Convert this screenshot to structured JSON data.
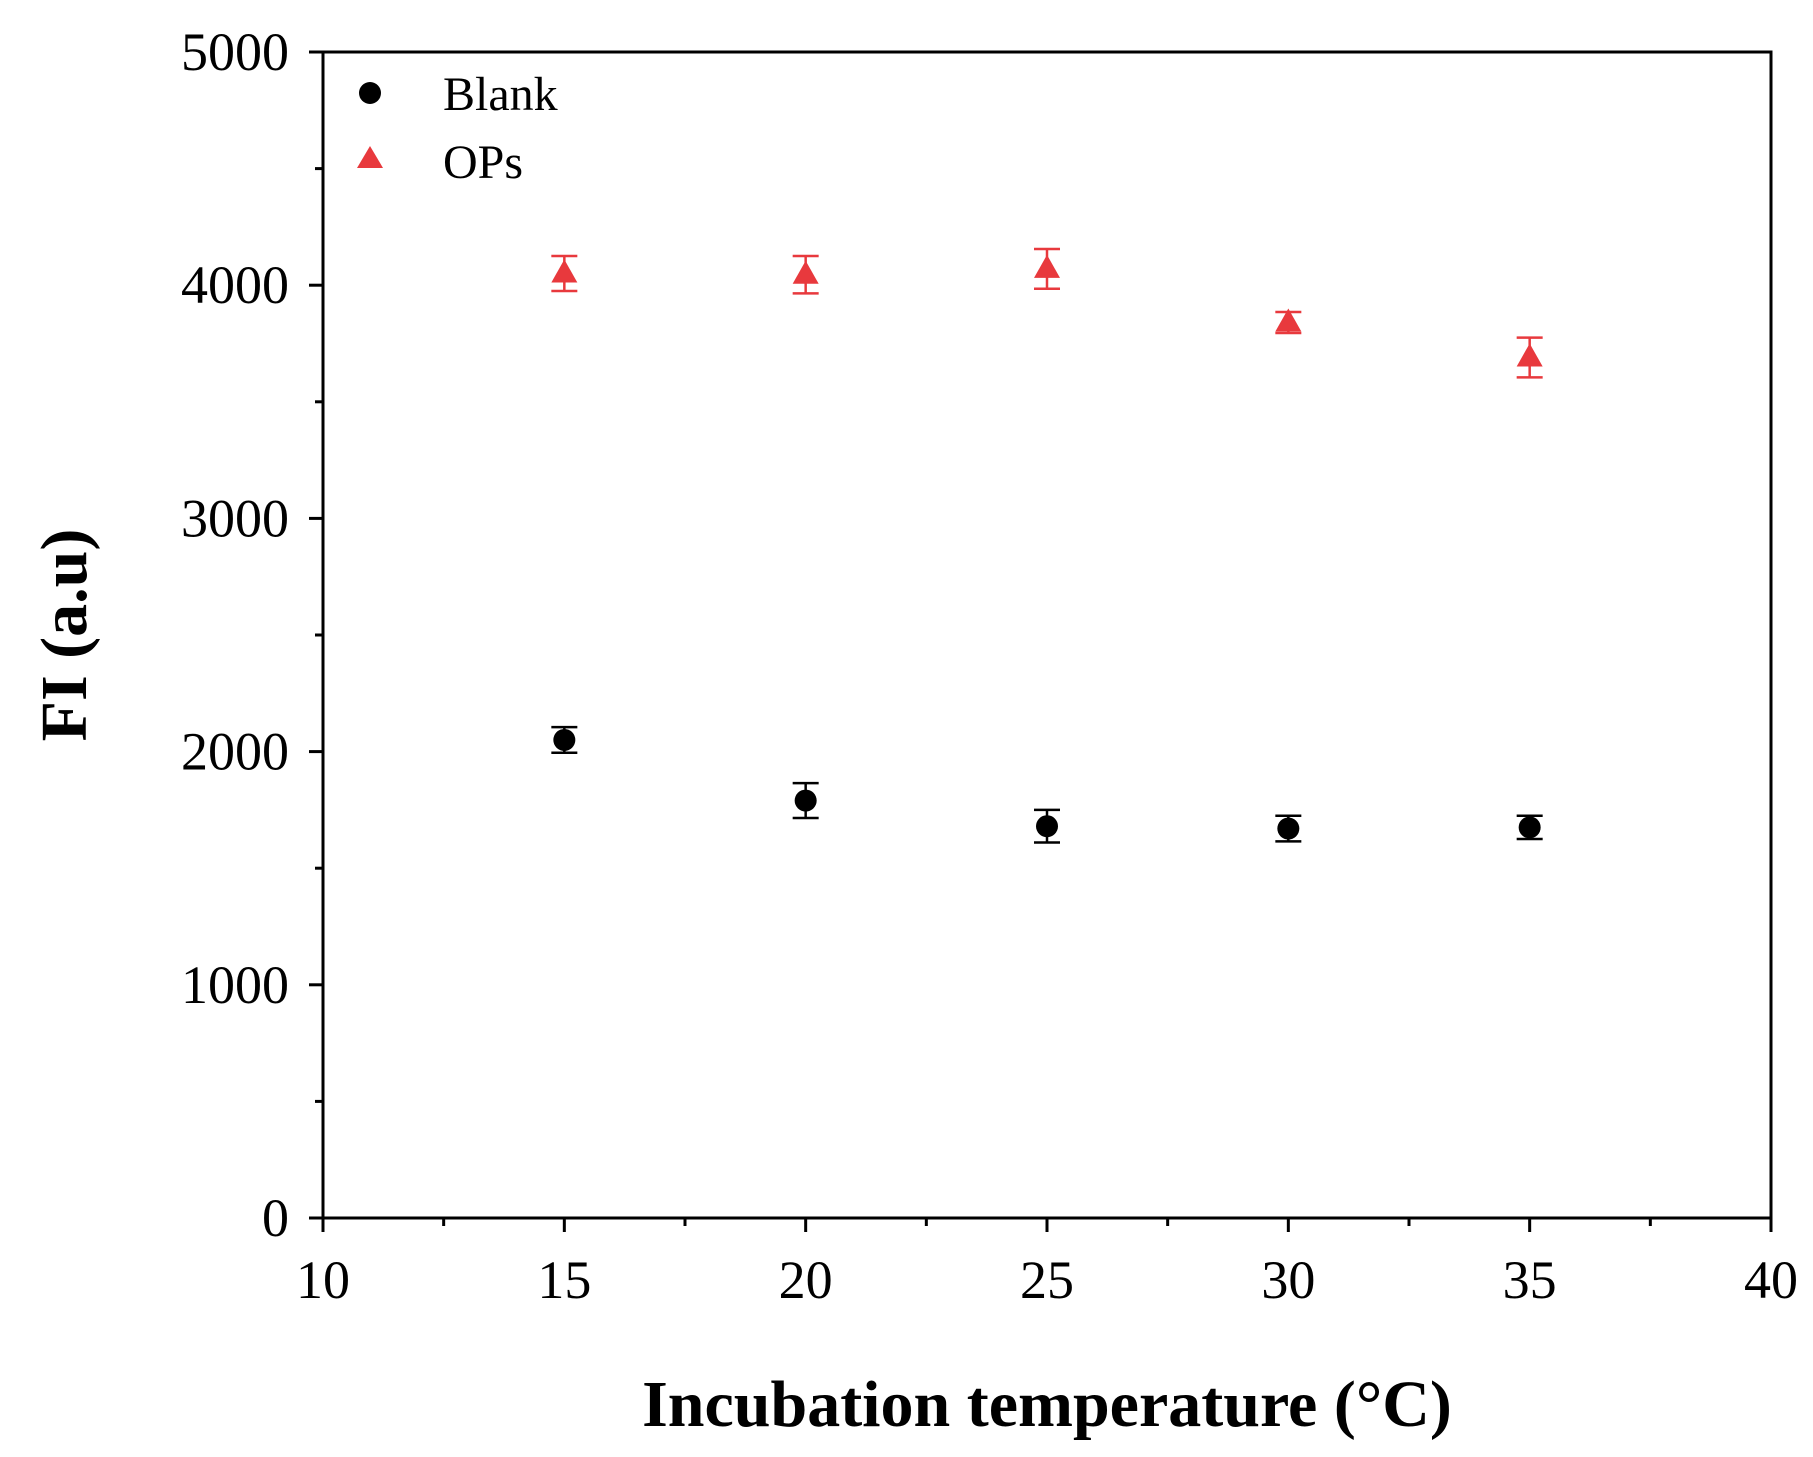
{
  "chart_data": {
    "type": "scatter",
    "title": "",
    "xlabel": "Incubation temperature (°C)",
    "ylabel": "FI (a.u)",
    "xlim": [
      10,
      40
    ],
    "ylim": [
      0,
      5000
    ],
    "xticks": [
      "10",
      "15",
      "20",
      "25",
      "30",
      "35",
      "40"
    ],
    "yticks": [
      "0",
      "1000",
      "2000",
      "3000",
      "4000",
      "5000"
    ],
    "grid": false,
    "legend": {
      "position": "top-left",
      "entries": [
        "Blank",
        "OPs"
      ]
    },
    "series": [
      {
        "name": "Blank",
        "marker": "circle",
        "color": "#000000",
        "x": [
          15,
          20,
          25,
          30,
          35
        ],
        "y": [
          2050,
          1790,
          1680,
          1670,
          1675
        ],
        "yerr": [
          55,
          75,
          70,
          55,
          50
        ]
      },
      {
        "name": "OPs",
        "marker": "triangle",
        "color": "#e8393d",
        "x": [
          15,
          20,
          25,
          30,
          35
        ],
        "y": [
          4050,
          4045,
          4070,
          3840,
          3690
        ],
        "yerr": [
          75,
          80,
          85,
          45,
          85
        ]
      }
    ]
  }
}
